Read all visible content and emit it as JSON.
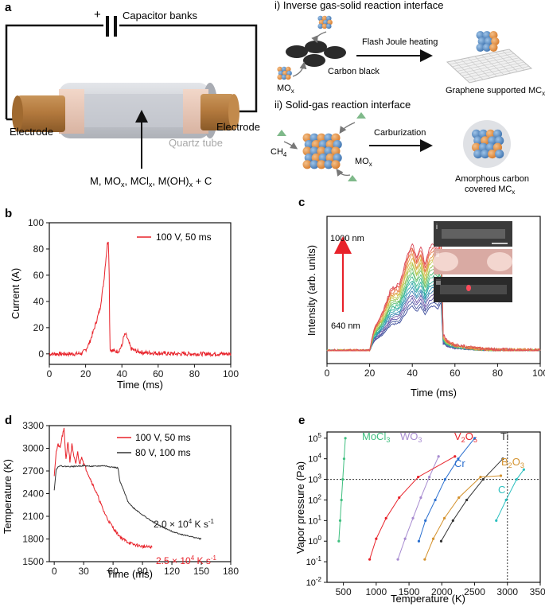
{
  "panels": {
    "a": "a",
    "b": "b",
    "c": "c",
    "d": "d",
    "e": "e"
  },
  "panel_a": {
    "capacitor": "Capacitor banks",
    "plus": "+",
    "electrode_left": "Electrode",
    "electrode_right": "Electrode",
    "quartz": "Quartz tube",
    "precursor": "M, MO",
    "precursor_parts": [
      "M, MO",
      "x",
      ", MCl",
      "x",
      ", M(OH)",
      "x",
      " + C"
    ],
    "route1_title": "i) Inverse gas-solid reaction interface",
    "route1_arrow": "Flash Joule heating",
    "route1_carbon": "Carbon black",
    "route1_mox": "MO",
    "route1_product": "Graphene supported MC",
    "route2_title": "ii) Solid-gas reaction interface",
    "route2_arrow": "Carburization",
    "route2_ch4": "CH",
    "route2_mox": "MO",
    "route2_product_1": "Amorphous carbon",
    "route2_product_2": "covered MC",
    "sub_x": "x",
    "sub_4": "4"
  },
  "chart_data": [
    {
      "id": "b",
      "type": "line",
      "xlabel": "Time (ms)",
      "ylabel": "Current (A)",
      "xlim": [
        0,
        100
      ],
      "ylim": [
        -8,
        100
      ],
      "xticks": [
        0,
        20,
        40,
        60,
        80,
        100
      ],
      "yticks": [
        0,
        20,
        40,
        60,
        80,
        100
      ],
      "series": [
        {
          "name": "100 V, 50 ms",
          "color": "#e8222a",
          "x": [
            0,
            5,
            10,
            15,
            18,
            20,
            22,
            24,
            26,
            28,
            30,
            31,
            32,
            32.6,
            33,
            33.4,
            34,
            36,
            38,
            40,
            41,
            42,
            43,
            44,
            45,
            48,
            52,
            60,
            70,
            80,
            90,
            100
          ],
          "y": [
            0,
            0,
            0,
            0,
            0.5,
            3,
            8,
            16,
            25,
            35,
            55,
            70,
            84,
            87,
            60,
            4,
            3,
            2,
            2,
            6,
            13,
            15,
            12,
            8,
            4,
            2,
            1,
            0.5,
            0,
            0,
            0,
            0
          ]
        }
      ]
    },
    {
      "id": "c",
      "type": "line",
      "xlabel": "Time (ms)",
      "ylabel": "Intensity (arb. units)",
      "xlim": [
        0,
        100
      ],
      "xticks": [
        0,
        20,
        40,
        60,
        80,
        100
      ],
      "arrow_top": "1000 nm",
      "arrow_bottom": "640 nm",
      "inset_labels": [
        "i",
        "ii",
        "iii"
      ],
      "series_count": 18,
      "profile": {
        "x": [
          0,
          20,
          22,
          26,
          30,
          34,
          38,
          40,
          42,
          44,
          46,
          48,
          50,
          52,
          53.5,
          54.5,
          56,
          60,
          70,
          80,
          100
        ],
        "y": [
          0,
          0,
          0.18,
          0.32,
          0.52,
          0.56,
          0.82,
          0.9,
          0.78,
          0.88,
          0.72,
          0.86,
          0.9,
          0.84,
          0.97,
          0.14,
          0.09,
          0.05,
          0.02,
          0.01,
          0.005
        ]
      }
    },
    {
      "id": "d",
      "type": "line",
      "xlabel": "Time (ms)",
      "ylabel": "Temperature (K)",
      "xlim": [
        -5,
        180
      ],
      "ylim": [
        1500,
        3300
      ],
      "xticks": [
        0,
        30,
        60,
        90,
        120,
        150,
        180
      ],
      "yticks": [
        1500,
        1800,
        2100,
        2400,
        2700,
        3000,
        3300
      ],
      "series": [
        {
          "name": "100 V, 50 ms",
          "color": "#e8222a",
          "x": [
            0,
            2,
            4,
            6,
            8,
            10,
            12,
            14,
            16,
            18,
            20,
            22,
            24,
            26,
            28,
            30,
            35,
            40,
            45,
            50,
            55,
            60,
            65,
            70,
            75,
            80,
            90,
            100
          ],
          "y": [
            2650,
            2950,
            3050,
            3000,
            3150,
            3250,
            2850,
            3100,
            2820,
            3050,
            2880,
            2800,
            2950,
            2780,
            2900,
            2800,
            2650,
            2500,
            2350,
            2180,
            2050,
            1950,
            1860,
            1800,
            1760,
            1730,
            1700,
            1690
          ],
          "annotation": "2.5 × 10",
          "annotation_exp": "4",
          "annotation_unit": " K s",
          "annotation_unit_exp": "-1"
        },
        {
          "name": "80 V, 100 ms",
          "color": "#333333",
          "x": [
            0,
            2,
            5,
            10,
            20,
            30,
            40,
            50,
            60,
            65,
            67,
            70,
            75,
            80,
            90,
            100,
            110,
            120,
            130,
            140,
            150
          ],
          "y": [
            2450,
            2720,
            2770,
            2760,
            2760,
            2770,
            2760,
            2770,
            2750,
            2740,
            2560,
            2470,
            2300,
            2220,
            2120,
            2030,
            1960,
            1900,
            1860,
            1830,
            1800
          ],
          "annotation": "2.0 × 10",
          "annotation_exp": "4",
          "annotation_unit": " K s",
          "annotation_unit_exp": "-1"
        }
      ]
    },
    {
      "id": "e",
      "type": "line",
      "xlabel": "Temperature (K)",
      "ylabel": "Vapor pressure (Pa)",
      "yscale": "log",
      "xlim": [
        250,
        3500
      ],
      "ylim": [
        0.01,
        200000
      ],
      "xticks": [
        500,
        1000,
        1500,
        2000,
        2500,
        3000,
        3500
      ],
      "ytick_exponents": [
        -2,
        -1,
        0,
        1,
        2,
        3,
        4,
        5
      ],
      "ytick_base": "10",
      "hline": 1000,
      "vline": 3000,
      "series": [
        {
          "name": "MoCl",
          "sub": "3",
          "color": "#3fbf7f",
          "x": [
            430,
            450,
            470,
            490,
            510,
            530
          ],
          "y": [
            1,
            10,
            100,
            1000,
            10000,
            100000
          ]
        },
        {
          "name": "WO",
          "sub": "3",
          "color": "#a78bd0",
          "x": [
            1330,
            1440,
            1560,
            1680,
            1810,
            1950
          ],
          "y": [
            0.13,
            1.3,
            13,
            130,
            1300,
            13000
          ]
        },
        {
          "name": "V",
          "sub": "2",
          "name2": "O",
          "sub2": "5",
          "color": "#e8222a",
          "x": [
            900,
            1000,
            1150,
            1350,
            1640,
            2200
          ],
          "y": [
            0.13,
            1.3,
            13,
            130,
            1300,
            13000
          ]
        },
        {
          "name": "Cr",
          "sub": "",
          "color": "#2a6fcf",
          "x": [
            1650,
            1750,
            1900,
            2050,
            2250,
            2500
          ],
          "y": [
            1,
            10,
            100,
            1000,
            10000,
            100000
          ]
        },
        {
          "name": "Ti",
          "sub": "",
          "color": "#333333",
          "x": [
            1990,
            2170,
            2380,
            2630,
            2930
          ],
          "y": [
            1,
            10,
            100,
            1000,
            10000
          ]
        },
        {
          "name": "B",
          "sub": "2",
          "name2": "O",
          "sub2": "3",
          "color": "#d4922e",
          "x": [
            1740,
            1870,
            2040,
            2260,
            2590,
            2900
          ],
          "y": [
            0.13,
            1.3,
            13,
            130,
            1300,
            1500
          ]
        },
        {
          "name": "C",
          "sub": "",
          "color": "#2bbfbf",
          "x": [
            2830,
            2980,
            3140,
            3250
          ],
          "y": [
            10,
            100,
            1000,
            3000
          ]
        }
      ]
    }
  ]
}
